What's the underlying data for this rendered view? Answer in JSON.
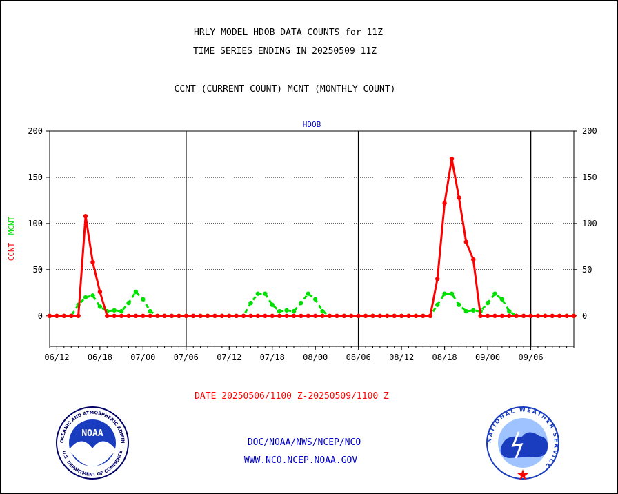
{
  "titles": {
    "line1": "HRLY MODEL HDOB DATA COUNTS for 11Z",
    "line2": "TIME SERIES ENDING IN 20250509 11Z",
    "line3": "CCNT (CURRENT COUNT) MCNT (MONTHLY COUNT)",
    "panel": "HDOB"
  },
  "axis": {
    "ylabel_ccnt": "CCNT",
    "ylabel_mcnt": "MCNT"
  },
  "footer": {
    "date_range": "DATE 20250506/1100 Z-20250509/1100 Z",
    "org": "DOC/NOAA/NWS/NCEP/NCO",
    "url": "WWW.NCO.NCEP.NOAA.GOV",
    "noaa_logo_text": "NOAA",
    "noaa_ring_top": "NATIONAL OCEANIC AND ATMOSPHERIC ADMINISTRATION",
    "noaa_ring_bottom": "U.S. DEPARTMENT OF COMMERCE",
    "nws_ring": "NATIONAL WEATHER SERVICE"
  },
  "colors": {
    "ccnt": "#ff0000",
    "mcnt": "#00e000",
    "text_blue": "#0000cc",
    "text_red": "#ff0000"
  },
  "chart_data": {
    "type": "line",
    "title": "HRLY MODEL HDOB DATA COUNTS for 11Z",
    "subtitle": "TIME SERIES ENDING IN 20250509 11Z",
    "xlabel": "",
    "ylabel": "CCNT  MCNT",
    "ylim": [
      -33,
      200
    ],
    "yticks": [
      0,
      50,
      100,
      150,
      200
    ],
    "xlim": [
      -1,
      72
    ],
    "x_tick_positions": [
      0,
      6,
      12,
      18,
      24,
      30,
      36,
      42,
      48,
      54,
      60,
      66
    ],
    "x_tick_labels": [
      "06/12",
      "06/18",
      "07/00",
      "07/06",
      "07/12",
      "07/18",
      "08/00",
      "08/06",
      "08/12",
      "08/18",
      "09/00",
      "09/06"
    ],
    "day_boundaries": [
      18,
      42,
      66
    ],
    "grid": true,
    "legend": "none",
    "x": [
      -1,
      0,
      1,
      2,
      3,
      4,
      5,
      6,
      7,
      8,
      9,
      10,
      11,
      12,
      13,
      14,
      15,
      16,
      17,
      18,
      19,
      20,
      21,
      22,
      23,
      24,
      25,
      26,
      27,
      28,
      29,
      30,
      31,
      32,
      33,
      34,
      35,
      36,
      37,
      38,
      39,
      40,
      41,
      42,
      43,
      44,
      45,
      46,
      47,
      48,
      49,
      50,
      51,
      52,
      53,
      54,
      55,
      56,
      57,
      58,
      59,
      60,
      61,
      62,
      63,
      64,
      65,
      66,
      67,
      68,
      69,
      70,
      71,
      72
    ],
    "series": [
      {
        "name": "CCNT",
        "values": [
          0,
          0,
          0,
          0,
          0,
          108,
          58,
          26,
          0,
          0,
          0,
          0,
          0,
          0,
          0,
          0,
          0,
          0,
          0,
          0,
          0,
          0,
          0,
          0,
          0,
          0,
          0,
          0,
          0,
          0,
          0,
          0,
          0,
          0,
          0,
          0,
          0,
          0,
          0,
          0,
          0,
          0,
          0,
          0,
          0,
          0,
          0,
          0,
          0,
          0,
          0,
          0,
          0,
          0,
          40,
          122,
          170,
          128,
          80,
          61,
          0,
          0,
          0,
          0,
          0,
          0,
          0,
          0,
          0,
          0,
          0,
          0,
          0,
          0
        ]
      },
      {
        "name": "MCNT",
        "values": [
          0,
          0,
          0,
          0,
          12,
          20,
          22,
          10,
          5,
          6,
          5,
          14,
          26,
          18,
          5,
          0,
          0,
          0,
          0,
          0,
          0,
          0,
          0,
          0,
          0,
          0,
          0,
          0,
          14,
          24,
          24,
          12,
          5,
          6,
          5,
          14,
          24,
          18,
          5,
          0,
          0,
          0,
          0,
          0,
          0,
          0,
          0,
          0,
          0,
          0,
          0,
          0,
          0,
          0,
          12,
          24,
          24,
          12,
          5,
          6,
          5,
          14,
          24,
          18,
          5,
          0,
          0,
          0,
          0,
          0,
          0,
          0,
          0,
          0
        ]
      }
    ]
  }
}
